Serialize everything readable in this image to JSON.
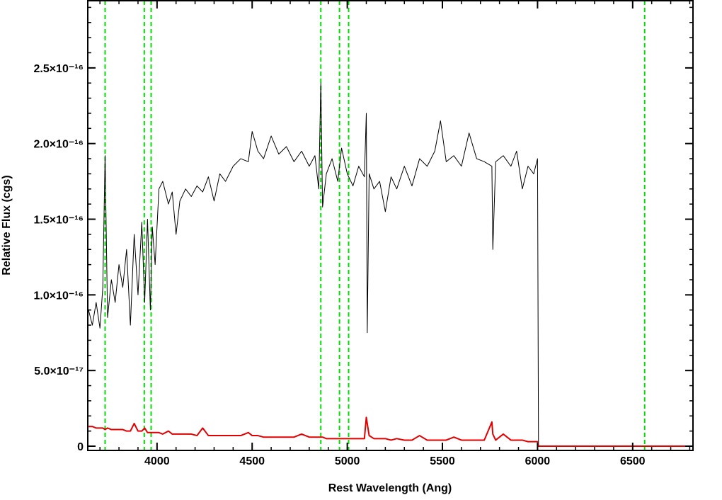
{
  "chart_data": {
    "type": "line",
    "xlabel": "Rest Wavelength (Ang)",
    "ylabel": "Relative Flux (cgs)",
    "xlim": [
      3636,
      6817
    ],
    "ylim": [
      -2.8e-18,
      2.944e-16
    ],
    "xticks": [
      4000,
      4500,
      5000,
      5500,
      6000,
      6500
    ],
    "yticks": [
      0,
      {
        "value": 5e-17,
        "label": "5.0×10⁻¹⁷"
      },
      {
        "value": 1e-16,
        "label": "1.0×10⁻¹⁶"
      },
      {
        "value": 1.5e-16,
        "label": "1.5×10⁻¹⁶"
      },
      {
        "value": 2e-16,
        "label": "2.0×10⁻¹⁶"
      },
      {
        "value": 2.5e-16,
        "label": "2.5×10⁻¹⁶"
      }
    ],
    "reference_lines": {
      "color": "#00e000",
      "x": [
        3727,
        3933,
        3969,
        4861,
        4959,
        5007,
        6563
      ]
    },
    "x": [
      3640,
      3660,
      3680,
      3700,
      3715,
      3727,
      3740,
      3760,
      3780,
      3800,
      3820,
      3840,
      3860,
      3880,
      3900,
      3920,
      3935,
      3950,
      3965,
      3975,
      3990,
      4010,
      4030,
      4060,
      4080,
      4100,
      4120,
      4150,
      4180,
      4210,
      4240,
      4270,
      4300,
      4330,
      4360,
      4400,
      4440,
      4480,
      4500,
      4530,
      4560,
      4600,
      4640,
      4680,
      4720,
      4760,
      4800,
      4830,
      4850,
      4861,
      4870,
      4890,
      4920,
      4950,
      4970,
      5000,
      5030,
      5060,
      5090,
      5100,
      5105,
      5115,
      5140,
      5170,
      5200,
      5230,
      5260,
      5300,
      5340,
      5380,
      5420,
      5460,
      5490,
      5520,
      5560,
      5600,
      5640,
      5680,
      5720,
      5760,
      5765,
      5780,
      5820,
      5860,
      5890,
      5920,
      5950,
      5980,
      6000,
      6005,
      6400,
      6817
    ],
    "series": [
      {
        "color": "#000000",
        "width": 1,
        "values": [
          9e-17,
          8e-17,
          9.5e-17,
          7.8e-17,
          1.05e-16,
          1.92e-16,
          8.5e-17,
          1.1e-16,
          9.5e-17,
          1.2e-16,
          1.05e-16,
          1.3e-16,
          8e-17,
          1.4e-16,
          1e-16,
          1.48e-16,
          9.5e-17,
          1.5e-16,
          9e-17,
          1.45e-16,
          1.2e-16,
          1.7e-16,
          1.75e-16,
          1.6e-16,
          1.68e-16,
          1.4e-16,
          1.62e-16,
          1.7e-16,
          1.65e-16,
          1.72e-16,
          1.68e-16,
          1.78e-16,
          1.62e-16,
          1.8e-16,
          1.75e-16,
          1.85e-16,
          1.9e-16,
          1.88e-16,
          2.08e-16,
          1.95e-16,
          1.9e-16,
          2.05e-16,
          1.93e-16,
          1.98e-16,
          1.88e-16,
          1.95e-16,
          1.85e-16,
          1.92e-16,
          1.7e-16,
          2.4e-16,
          1.58e-16,
          1.8e-16,
          1.9e-16,
          1.75e-16,
          1.97e-16,
          1.8e-16,
          1.72e-16,
          1.85e-16,
          1.78e-16,
          2.2e-16,
          7.5e-17,
          1.8e-16,
          1.7e-16,
          1.75e-16,
          1.55e-16,
          1.78e-16,
          1.7e-16,
          1.85e-16,
          1.72e-16,
          1.9e-16,
          1.85e-16,
          1.95e-16,
          2.15e-16,
          1.88e-16,
          1.92e-16,
          1.85e-16,
          2.07e-16,
          1.9e-16,
          1.88e-16,
          1.85e-16,
          1.3e-16,
          1.88e-16,
          1.92e-16,
          1.85e-16,
          1.95e-16,
          1.7e-16,
          1.85e-16,
          1.8e-16,
          1.9e-16,
          0,
          0,
          0
        ]
      },
      {
        "color": "#e00000",
        "width": 2,
        "values": [
          1.3e-17,
          1.3e-17,
          1.2e-17,
          1.2e-17,
          1.2e-17,
          1.1e-17,
          1.2e-17,
          1.1e-17,
          1.1e-17,
          1.1e-17,
          1.1e-17,
          1e-17,
          1e-17,
          1.5e-17,
          1e-17,
          1e-17,
          1.2e-17,
          9e-18,
          9e-18,
          9e-18,
          9e-18,
          9e-18,
          8e-18,
          1e-17,
          8e-18,
          8e-18,
          8e-18,
          8e-18,
          8e-18,
          7e-18,
          1.2e-17,
          7e-18,
          7e-18,
          7e-18,
          7e-18,
          7e-18,
          7e-18,
          9e-18,
          7e-18,
          7e-18,
          6e-18,
          6e-18,
          6e-18,
          6e-18,
          6e-18,
          8e-18,
          6e-18,
          6e-18,
          6e-18,
          6e-18,
          6e-18,
          5e-18,
          5e-18,
          5e-18,
          5e-18,
          5e-18,
          5e-18,
          5e-18,
          5e-18,
          1.9e-17,
          1.5e-17,
          7e-18,
          5e-18,
          5e-18,
          5e-18,
          4e-18,
          5e-18,
          4e-18,
          4e-18,
          7e-18,
          4e-18,
          4e-18,
          4e-18,
          4e-18,
          6e-18,
          4e-18,
          4e-18,
          4e-18,
          4e-18,
          1.6e-17,
          8e-18,
          4e-18,
          8e-18,
          4e-18,
          4e-18,
          4e-18,
          3e-18,
          3e-18,
          3e-18,
          0,
          0,
          0
        ]
      }
    ]
  }
}
